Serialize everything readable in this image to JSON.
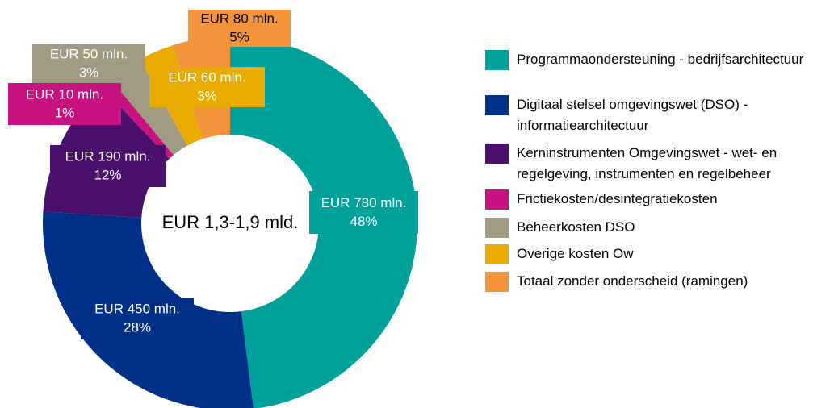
{
  "chart_data": {
    "type": "donut",
    "center_label": "EUR 1,3-1,9 mld.",
    "categories": [
      "Programmaondersteuning - bedrijfsarchitectuur",
      "Digitaal stelsel omgevingswet (DSO) - informatiearchitectuur",
      "Kerninstrumenten Omgevingswet - wet- en regelgeving, instrumenten en regelbeheer",
      "Frictiekosten/desintegratiekosten",
      "Beheerkosten DSO",
      "Overige kosten Ow",
      "Totaal zonder onderscheid (ramingen)"
    ],
    "values": [
      48,
      28,
      12,
      1,
      3,
      3,
      5
    ],
    "value_labels": [
      "48%",
      "28%",
      "12%",
      "1%",
      "3%",
      "3%",
      "5%"
    ],
    "amount_labels": [
      "EUR 780 mln.",
      "EUR 450 mln.",
      "EUR 190 mln.",
      "EUR 10 mln.",
      "EUR 50 mln.",
      "EUR 60 mln.",
      "EUR 80 mln."
    ],
    "colors": [
      "#00a19a",
      "#003087",
      "#4b0f6c",
      "#c8127f",
      "#a09a83",
      "#e9ab00",
      "#f3943a"
    ],
    "legend": "right"
  }
}
